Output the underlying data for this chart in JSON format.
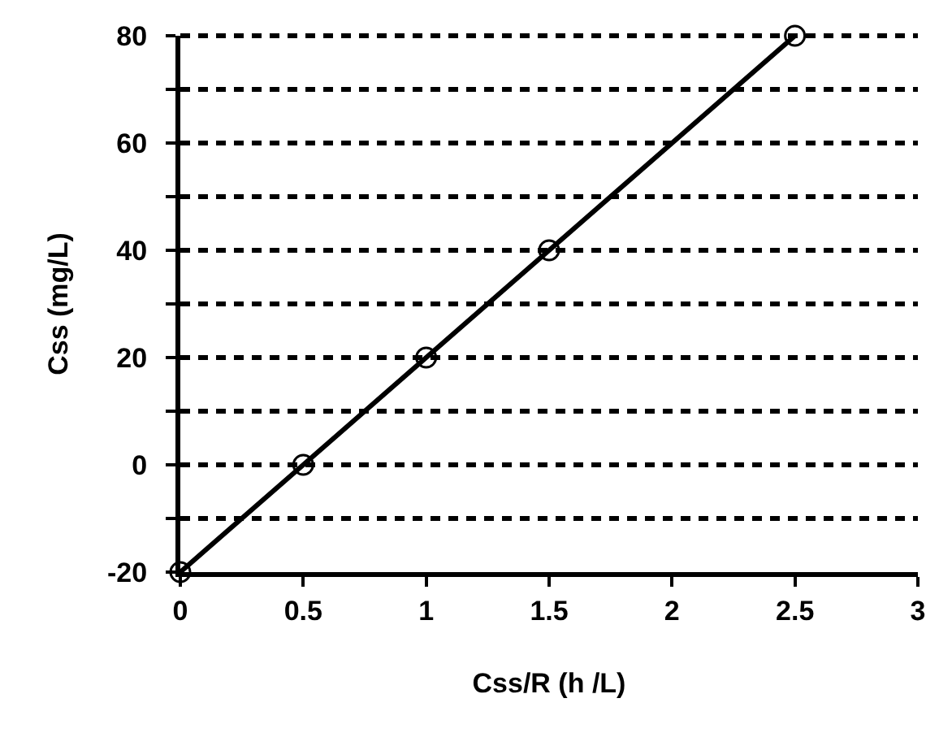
{
  "chart_data": {
    "type": "line",
    "xlabel": "Css/R (h /L)",
    "ylabel": "Css (mg/L)",
    "x": [
      0,
      0.5,
      1,
      1.5,
      2.5
    ],
    "series": [
      {
        "color": "#000000",
        "values": [
          -20,
          0,
          20,
          40,
          80
        ]
      }
    ],
    "xlim": [
      0,
      3
    ],
    "xticks": [
      0,
      0.5,
      1,
      1.5,
      2,
      2.5,
      3
    ],
    "ylim": [
      -20,
      80
    ],
    "yticks": [
      -20,
      {
        "value": -10,
        "label": null
      },
      0,
      {
        "value": 10,
        "label": null
      },
      20,
      {
        "value": 30,
        "label": null
      },
      40,
      {
        "value": 50,
        "label": null
      },
      60,
      {
        "value": 70,
        "label": null
      },
      80
    ],
    "grid": "y",
    "marker": "circle",
    "line_style": "solid"
  }
}
